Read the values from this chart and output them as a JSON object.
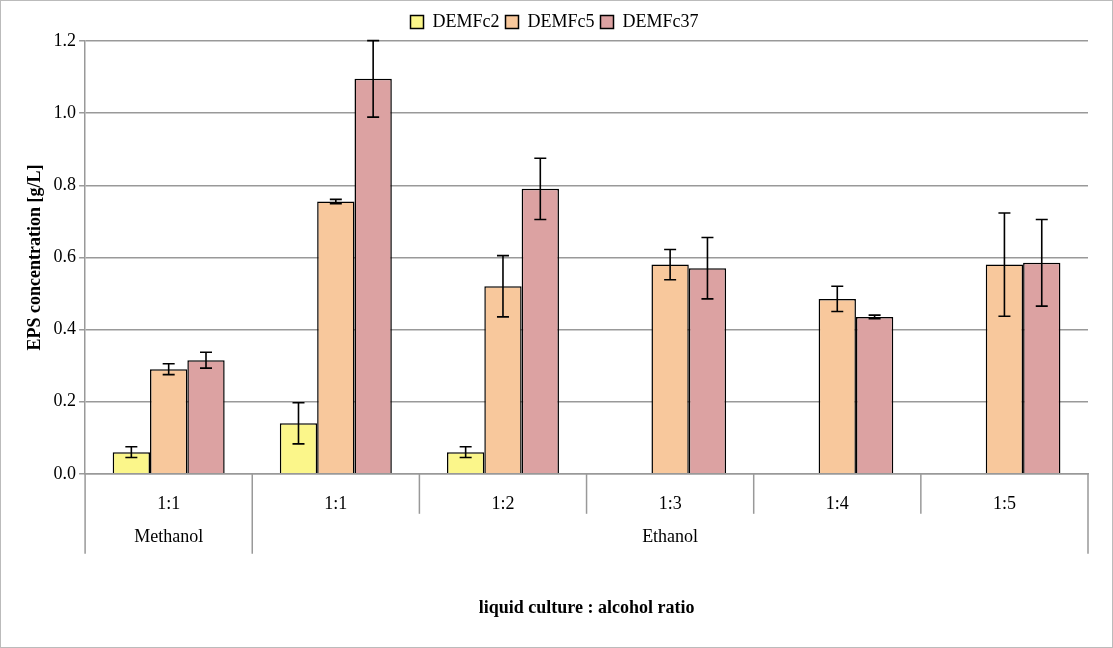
{
  "chart_data": {
    "type": "bar",
    "xlabel": "liquid culture : alcohol ratio",
    "ylabel": "EPS concentration [g/L]",
    "categories": [
      "1:1",
      "1:1",
      "1:2",
      "1:3",
      "1:4",
      "1:5"
    ],
    "annotations": [
      "Methanol",
      "Ethanol"
    ],
    "series": [
      {
        "name": "DEMFc2",
        "color": "#fbf68a",
        "values": [
          0.06,
          0.14,
          0.06,
          null,
          null,
          null
        ],
        "errors": [
          0.015,
          0.057,
          0.015,
          null,
          null,
          null
        ]
      },
      {
        "name": "DEMFc5",
        "color": "#f8c89c",
        "values": [
          0.29,
          0.755,
          0.52,
          0.58,
          0.485,
          0.58
        ],
        "errors": [
          0.015,
          0.006,
          0.085,
          0.042,
          0.035,
          0.143
        ]
      },
      {
        "name": "DEMFc37",
        "color": "#dca2a2",
        "values": [
          0.315,
          1.095,
          0.79,
          0.57,
          0.435,
          0.585
        ],
        "errors": [
          0.022,
          0.106,
          0.085,
          0.085,
          0.005,
          0.12
        ]
      }
    ],
    "ylim": [
      0,
      1.2
    ],
    "yticks": [
      {
        "value": 0,
        "label": "0.0"
      },
      {
        "value": 0.2,
        "label": "0.2"
      },
      {
        "value": 0.4,
        "label": "0.4"
      },
      {
        "value": 0.6,
        "label": "0.6"
      },
      {
        "value": 0.8,
        "label": "0.8"
      },
      {
        "value": 1.0,
        "label": "1.0"
      },
      {
        "value": 1.2,
        "label": "1.2"
      }
    ],
    "grid": "y",
    "legend": "top"
  }
}
